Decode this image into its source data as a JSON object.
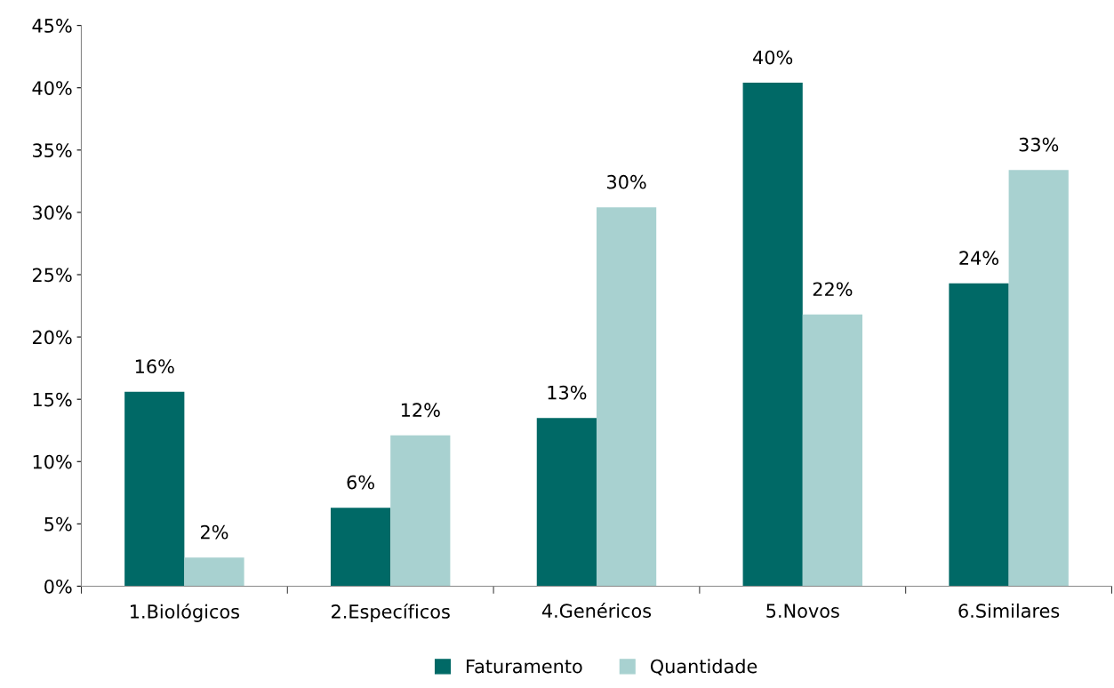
{
  "chart_data": {
    "type": "bar",
    "categories": [
      "1.Biológicos",
      "2.Específicos",
      "4.Genéricos",
      "5.Novos",
      "6.Similares"
    ],
    "series": [
      {
        "name": "Faturamento",
        "color": "#006966",
        "values": [
          15.6,
          6.3,
          13.5,
          40.4,
          24.3
        ],
        "value_labels": [
          "16%",
          "6%",
          "13%",
          "40%",
          "24%"
        ]
      },
      {
        "name": "Quantidade",
        "color": "#a8d1d0",
        "values": [
          2.3,
          12.1,
          30.4,
          21.8,
          33.4
        ],
        "value_labels": [
          "2%",
          "12%",
          "30%",
          "22%",
          "33%"
        ]
      }
    ],
    "ylim": [
      0,
      45
    ],
    "yticks": [
      {
        "value": 0,
        "label": "0%"
      },
      {
        "value": 5,
        "label": "5%"
      },
      {
        "value": 10,
        "label": "10%"
      },
      {
        "value": 15,
        "label": "15%"
      },
      {
        "value": 20,
        "label": "20%"
      },
      {
        "value": 25,
        "label": "25%"
      },
      {
        "value": 30,
        "label": "30%"
      },
      {
        "value": 35,
        "label": "35%"
      },
      {
        "value": 40,
        "label": "40%"
      },
      {
        "value": 45,
        "label": "45%"
      }
    ],
    "grid": false,
    "legend": "bottom"
  }
}
